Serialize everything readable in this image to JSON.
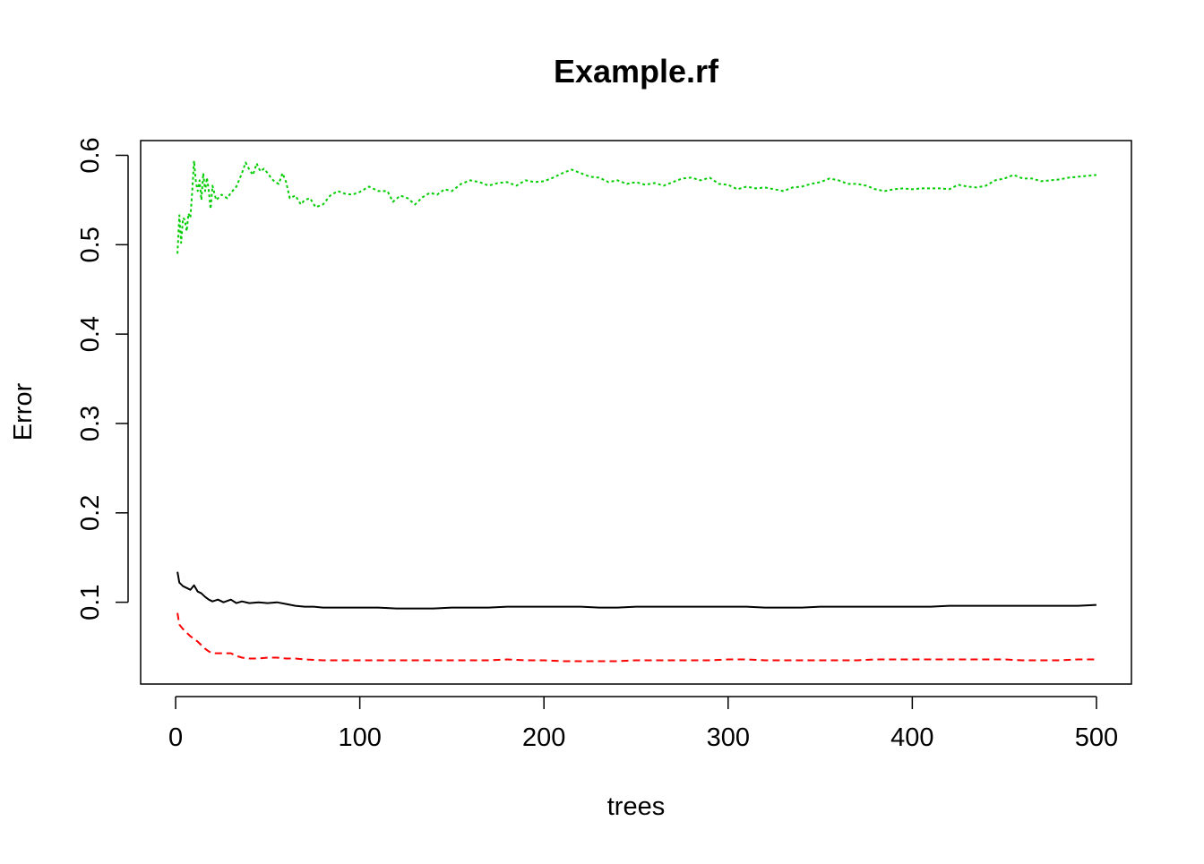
{
  "chart_data": {
    "type": "line",
    "title": "Example.rf",
    "xlabel": "trees",
    "ylabel": "Error",
    "xlim": [
      -19,
      519
    ],
    "ylim": [
      0.0085,
      0.6165
    ],
    "x_ticks": [
      0,
      100,
      200,
      300,
      400,
      500
    ],
    "y_ticks": [
      0.1,
      0.2,
      0.3,
      0.4,
      0.5,
      0.6
    ],
    "grid": false,
    "legend": "none",
    "series": [
      {
        "color": "#000000",
        "dash": "none",
        "points": [
          [
            1,
            0.134
          ],
          [
            2,
            0.122
          ],
          [
            4,
            0.118
          ],
          [
            6,
            0.116
          ],
          [
            8,
            0.114
          ],
          [
            10,
            0.119
          ],
          [
            12,
            0.112
          ],
          [
            14,
            0.11
          ],
          [
            16,
            0.106
          ],
          [
            18,
            0.103
          ],
          [
            20,
            0.101
          ],
          [
            23,
            0.103
          ],
          [
            26,
            0.1
          ],
          [
            30,
            0.103
          ],
          [
            33,
            0.099
          ],
          [
            36,
            0.101
          ],
          [
            40,
            0.099
          ],
          [
            45,
            0.1
          ],
          [
            50,
            0.099
          ],
          [
            55,
            0.1
          ],
          [
            60,
            0.098
          ],
          [
            65,
            0.096
          ],
          [
            70,
            0.095
          ],
          [
            75,
            0.095
          ],
          [
            80,
            0.094
          ],
          [
            90,
            0.094
          ],
          [
            100,
            0.094
          ],
          [
            110,
            0.094
          ],
          [
            120,
            0.093
          ],
          [
            130,
            0.093
          ],
          [
            140,
            0.093
          ],
          [
            150,
            0.094
          ],
          [
            160,
            0.094
          ],
          [
            170,
            0.094
          ],
          [
            180,
            0.095
          ],
          [
            190,
            0.095
          ],
          [
            200,
            0.095
          ],
          [
            210,
            0.095
          ],
          [
            220,
            0.095
          ],
          [
            230,
            0.094
          ],
          [
            240,
            0.094
          ],
          [
            250,
            0.095
          ],
          [
            260,
            0.095
          ],
          [
            270,
            0.095
          ],
          [
            280,
            0.095
          ],
          [
            290,
            0.095
          ],
          [
            300,
            0.095
          ],
          [
            310,
            0.095
          ],
          [
            320,
            0.094
          ],
          [
            330,
            0.094
          ],
          [
            340,
            0.094
          ],
          [
            350,
            0.095
          ],
          [
            360,
            0.095
          ],
          [
            370,
            0.095
          ],
          [
            380,
            0.095
          ],
          [
            390,
            0.095
          ],
          [
            400,
            0.095
          ],
          [
            410,
            0.095
          ],
          [
            420,
            0.096
          ],
          [
            430,
            0.096
          ],
          [
            440,
            0.096
          ],
          [
            450,
            0.096
          ],
          [
            460,
            0.096
          ],
          [
            470,
            0.096
          ],
          [
            480,
            0.096
          ],
          [
            490,
            0.096
          ],
          [
            500,
            0.097
          ]
        ]
      },
      {
        "color": "#ff0000",
        "dash": "8,5",
        "points": [
          [
            1,
            0.088
          ],
          [
            2,
            0.075
          ],
          [
            4,
            0.07
          ],
          [
            6,
            0.066
          ],
          [
            8,
            0.062
          ],
          [
            10,
            0.059
          ],
          [
            12,
            0.056
          ],
          [
            14,
            0.052
          ],
          [
            16,
            0.048
          ],
          [
            18,
            0.045
          ],
          [
            20,
            0.043
          ],
          [
            25,
            0.043
          ],
          [
            30,
            0.043
          ],
          [
            33,
            0.04
          ],
          [
            36,
            0.038
          ],
          [
            40,
            0.037
          ],
          [
            45,
            0.037
          ],
          [
            50,
            0.038
          ],
          [
            55,
            0.038
          ],
          [
            60,
            0.037
          ],
          [
            65,
            0.037
          ],
          [
            70,
            0.036
          ],
          [
            80,
            0.035
          ],
          [
            90,
            0.035
          ],
          [
            100,
            0.035
          ],
          [
            110,
            0.035
          ],
          [
            120,
            0.035
          ],
          [
            130,
            0.035
          ],
          [
            140,
            0.035
          ],
          [
            150,
            0.035
          ],
          [
            160,
            0.035
          ],
          [
            170,
            0.035
          ],
          [
            180,
            0.036
          ],
          [
            190,
            0.035
          ],
          [
            200,
            0.035
          ],
          [
            210,
            0.034
          ],
          [
            220,
            0.034
          ],
          [
            230,
            0.034
          ],
          [
            240,
            0.034
          ],
          [
            250,
            0.035
          ],
          [
            260,
            0.035
          ],
          [
            270,
            0.035
          ],
          [
            280,
            0.035
          ],
          [
            290,
            0.035
          ],
          [
            300,
            0.036
          ],
          [
            310,
            0.036
          ],
          [
            320,
            0.035
          ],
          [
            330,
            0.035
          ],
          [
            340,
            0.035
          ],
          [
            350,
            0.035
          ],
          [
            360,
            0.035
          ],
          [
            370,
            0.035
          ],
          [
            380,
            0.036
          ],
          [
            390,
            0.036
          ],
          [
            400,
            0.036
          ],
          [
            410,
            0.036
          ],
          [
            420,
            0.036
          ],
          [
            430,
            0.036
          ],
          [
            440,
            0.036
          ],
          [
            450,
            0.036
          ],
          [
            460,
            0.035
          ],
          [
            470,
            0.035
          ],
          [
            480,
            0.035
          ],
          [
            490,
            0.036
          ],
          [
            500,
            0.036
          ]
        ]
      },
      {
        "color": "#00cd00",
        "dash": "3,3",
        "points": [
          [
            1,
            0.49
          ],
          [
            2,
            0.533
          ],
          [
            3,
            0.502
          ],
          [
            4,
            0.53
          ],
          [
            5,
            0.528
          ],
          [
            6,
            0.515
          ],
          [
            7,
            0.535
          ],
          [
            8,
            0.53
          ],
          [
            9,
            0.56
          ],
          [
            10,
            0.594
          ],
          [
            11,
            0.57
          ],
          [
            12,
            0.56
          ],
          [
            13,
            0.572
          ],
          [
            14,
            0.55
          ],
          [
            15,
            0.58
          ],
          [
            16,
            0.56
          ],
          [
            17,
            0.575
          ],
          [
            18,
            0.56
          ],
          [
            19,
            0.54
          ],
          [
            20,
            0.566
          ],
          [
            22,
            0.55
          ],
          [
            25,
            0.556
          ],
          [
            28,
            0.552
          ],
          [
            30,
            0.558
          ],
          [
            33,
            0.565
          ],
          [
            36,
            0.58
          ],
          [
            38,
            0.592
          ],
          [
            40,
            0.584
          ],
          [
            42,
            0.578
          ],
          [
            44,
            0.591
          ],
          [
            46,
            0.582
          ],
          [
            48,
            0.585
          ],
          [
            50,
            0.58
          ],
          [
            52,
            0.574
          ],
          [
            54,
            0.57
          ],
          [
            56,
            0.568
          ],
          [
            58,
            0.58
          ],
          [
            60,
            0.57
          ],
          [
            62,
            0.552
          ],
          [
            65,
            0.555
          ],
          [
            68,
            0.545
          ],
          [
            70,
            0.55
          ],
          [
            73,
            0.552
          ],
          [
            76,
            0.542
          ],
          [
            80,
            0.545
          ],
          [
            84,
            0.555
          ],
          [
            88,
            0.56
          ],
          [
            92,
            0.557
          ],
          [
            96,
            0.556
          ],
          [
            100,
            0.559
          ],
          [
            105,
            0.565
          ],
          [
            110,
            0.56
          ],
          [
            115,
            0.56
          ],
          [
            118,
            0.548
          ],
          [
            122,
            0.555
          ],
          [
            126,
            0.552
          ],
          [
            130,
            0.545
          ],
          [
            134,
            0.553
          ],
          [
            138,
            0.558
          ],
          [
            142,
            0.556
          ],
          [
            146,
            0.562
          ],
          [
            150,
            0.56
          ],
          [
            155,
            0.568
          ],
          [
            160,
            0.572
          ],
          [
            165,
            0.57
          ],
          [
            170,
            0.566
          ],
          [
            175,
            0.569
          ],
          [
            180,
            0.57
          ],
          [
            185,
            0.566
          ],
          [
            190,
            0.572
          ],
          [
            195,
            0.57
          ],
          [
            200,
            0.571
          ],
          [
            205,
            0.575
          ],
          [
            210,
            0.58
          ],
          [
            215,
            0.584
          ],
          [
            220,
            0.58
          ],
          [
            225,
            0.576
          ],
          [
            230,
            0.575
          ],
          [
            235,
            0.57
          ],
          [
            240,
            0.572
          ],
          [
            245,
            0.568
          ],
          [
            250,
            0.57
          ],
          [
            255,
            0.567
          ],
          [
            260,
            0.569
          ],
          [
            265,
            0.566
          ],
          [
            270,
            0.57
          ],
          [
            275,
            0.574
          ],
          [
            280,
            0.575
          ],
          [
            285,
            0.572
          ],
          [
            290,
            0.575
          ],
          [
            295,
            0.568
          ],
          [
            300,
            0.567
          ],
          [
            305,
            0.562
          ],
          [
            310,
            0.565
          ],
          [
            315,
            0.563
          ],
          [
            320,
            0.564
          ],
          [
            325,
            0.562
          ],
          [
            330,
            0.56
          ],
          [
            335,
            0.564
          ],
          [
            340,
            0.565
          ],
          [
            345,
            0.568
          ],
          [
            350,
            0.57
          ],
          [
            355,
            0.574
          ],
          [
            360,
            0.572
          ],
          [
            365,
            0.568
          ],
          [
            370,
            0.568
          ],
          [
            375,
            0.566
          ],
          [
            380,
            0.562
          ],
          [
            385,
            0.56
          ],
          [
            390,
            0.562
          ],
          [
            395,
            0.563
          ],
          [
            400,
            0.562
          ],
          [
            405,
            0.563
          ],
          [
            410,
            0.563
          ],
          [
            415,
            0.563
          ],
          [
            420,
            0.562
          ],
          [
            425,
            0.567
          ],
          [
            430,
            0.565
          ],
          [
            435,
            0.564
          ],
          [
            440,
            0.566
          ],
          [
            445,
            0.572
          ],
          [
            450,
            0.574
          ],
          [
            455,
            0.578
          ],
          [
            460,
            0.574
          ],
          [
            465,
            0.574
          ],
          [
            470,
            0.571
          ],
          [
            475,
            0.572
          ],
          [
            480,
            0.573
          ],
          [
            485,
            0.575
          ],
          [
            490,
            0.576
          ],
          [
            495,
            0.577
          ],
          [
            500,
            0.578
          ]
        ]
      }
    ]
  }
}
